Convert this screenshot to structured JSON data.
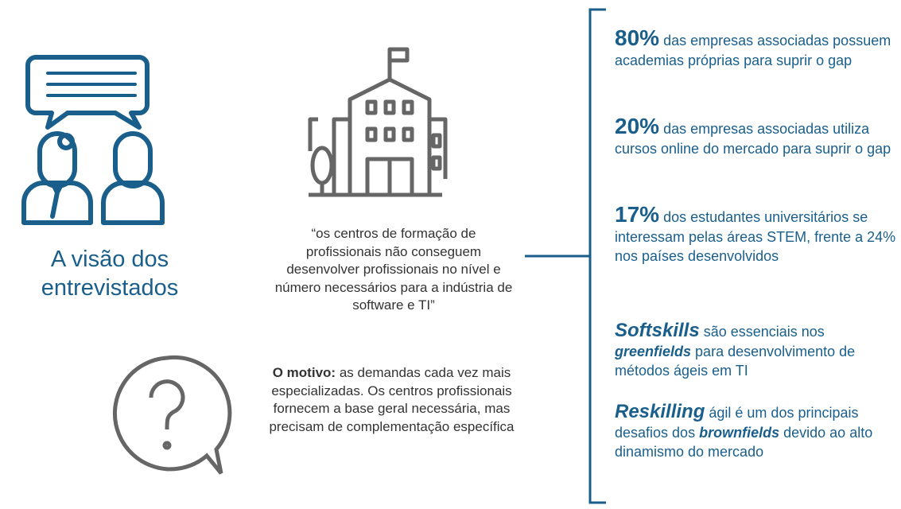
{
  "heading": "A visão dos entrevistados",
  "quote": "“os centros de formação de profissionais não conseguem desenvolver profissionais no nível e número necessários para a indústria de software e TI”",
  "reason": {
    "label": "O motivo:",
    "text": "as demandas cada vez mais especializadas. Os centros profissionais fornecem a base geral necessária, mas precisam de complementação específica"
  },
  "findings": [
    {
      "lead": "80%",
      "text": "das empresas associadas possuem academias próprias para suprir o gap"
    },
    {
      "lead": "20%",
      "text": "das empresas associadas utiliza cursos online do mercado para suprir o gap"
    },
    {
      "lead": "17%",
      "text": "dos estudantes universitários se interessam pelas áreas STEM, frente a 24% nos países desenvolvidos"
    },
    {
      "lead": "Softskills",
      "text": "são essenciais nos",
      "emphasis": "greenfields",
      "rest": "para desenvolvimento de métodos ágeis em TI"
    },
    {
      "lead": "Reskilling",
      "text": "ágil é um dos principais desafios dos",
      "emphasis": "brownfields",
      "rest": "devido ao alto dinamismo do mercado"
    }
  ]
}
